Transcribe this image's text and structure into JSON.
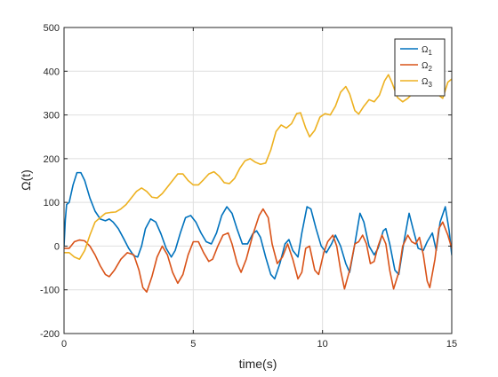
{
  "chart_data": {
    "type": "line",
    "title": "",
    "xlabel": "time(s)",
    "ylabel": "Ω(t)",
    "xlim": [
      0,
      15
    ],
    "ylim": [
      -200,
      500
    ],
    "xticks": [
      0,
      5,
      10,
      15
    ],
    "yticks": [
      -200,
      -100,
      0,
      100,
      200,
      300,
      400,
      500
    ],
    "grid": true,
    "legend_position": "top-right",
    "series": [
      {
        "name": "Ω1",
        "legend_base": "Ω",
        "legend_sub": "1",
        "color": "#0072BD",
        "points": [
          [
            0,
            0
          ],
          [
            0.05,
            60
          ],
          [
            0.1,
            95
          ],
          [
            0.2,
            100
          ],
          [
            0.35,
            140
          ],
          [
            0.5,
            168
          ],
          [
            0.65,
            168
          ],
          [
            0.8,
            150
          ],
          [
            1.0,
            110
          ],
          [
            1.2,
            80
          ],
          [
            1.4,
            62
          ],
          [
            1.6,
            58
          ],
          [
            1.75,
            62
          ],
          [
            1.9,
            55
          ],
          [
            2.1,
            40
          ],
          [
            2.3,
            18
          ],
          [
            2.5,
            -5
          ],
          [
            2.7,
            -22
          ],
          [
            2.85,
            -25
          ],
          [
            3.0,
            0
          ],
          [
            3.15,
            40
          ],
          [
            3.35,
            62
          ],
          [
            3.55,
            55
          ],
          [
            3.75,
            28
          ],
          [
            3.95,
            -5
          ],
          [
            4.15,
            -25
          ],
          [
            4.3,
            -10
          ],
          [
            4.5,
            30
          ],
          [
            4.7,
            65
          ],
          [
            4.9,
            70
          ],
          [
            5.1,
            55
          ],
          [
            5.3,
            30
          ],
          [
            5.5,
            10
          ],
          [
            5.7,
            5
          ],
          [
            5.9,
            30
          ],
          [
            6.1,
            70
          ],
          [
            6.3,
            90
          ],
          [
            6.5,
            75
          ],
          [
            6.7,
            38
          ],
          [
            6.9,
            5
          ],
          [
            7.1,
            5
          ],
          [
            7.3,
            28
          ],
          [
            7.45,
            35
          ],
          [
            7.6,
            20
          ],
          [
            7.8,
            -25
          ],
          [
            8.0,
            -65
          ],
          [
            8.15,
            -75
          ],
          [
            8.35,
            -40
          ],
          [
            8.55,
            5
          ],
          [
            8.7,
            15
          ],
          [
            8.85,
            -10
          ],
          [
            9.05,
            -25
          ],
          [
            9.2,
            30
          ],
          [
            9.4,
            90
          ],
          [
            9.55,
            85
          ],
          [
            9.75,
            40
          ],
          [
            9.95,
            0
          ],
          [
            10.15,
            -15
          ],
          [
            10.35,
            5
          ],
          [
            10.5,
            25
          ],
          [
            10.7,
            0
          ],
          [
            10.9,
            -40
          ],
          [
            11.05,
            -60
          ],
          [
            11.25,
            5
          ],
          [
            11.45,
            75
          ],
          [
            11.6,
            55
          ],
          [
            11.8,
            0
          ],
          [
            12.0,
            -20
          ],
          [
            12.15,
            -5
          ],
          [
            12.35,
            35
          ],
          [
            12.45,
            40
          ],
          [
            12.6,
            5
          ],
          [
            12.8,
            -55
          ],
          [
            12.95,
            -65
          ],
          [
            13.15,
            10
          ],
          [
            13.35,
            75
          ],
          [
            13.5,
            40
          ],
          [
            13.7,
            -5
          ],
          [
            13.9,
            -10
          ],
          [
            14.05,
            10
          ],
          [
            14.25,
            30
          ],
          [
            14.4,
            -10
          ],
          [
            14.55,
            55
          ],
          [
            14.75,
            90
          ],
          [
            14.9,
            35
          ],
          [
            15.0,
            -20
          ]
        ]
      },
      {
        "name": "Ω2",
        "legend_base": "Ω",
        "legend_sub": "2",
        "color": "#D95319",
        "points": [
          [
            0,
            -5
          ],
          [
            0.2,
            -5
          ],
          [
            0.4,
            10
          ],
          [
            0.6,
            14
          ],
          [
            0.8,
            12
          ],
          [
            1.0,
            0
          ],
          [
            1.2,
            -20
          ],
          [
            1.4,
            -45
          ],
          [
            1.6,
            -65
          ],
          [
            1.75,
            -70
          ],
          [
            1.95,
            -55
          ],
          [
            2.2,
            -30
          ],
          [
            2.45,
            -15
          ],
          [
            2.7,
            -20
          ],
          [
            2.9,
            -55
          ],
          [
            3.05,
            -95
          ],
          [
            3.2,
            -105
          ],
          [
            3.4,
            -70
          ],
          [
            3.6,
            -25
          ],
          [
            3.8,
            0
          ],
          [
            4.0,
            -20
          ],
          [
            4.2,
            -60
          ],
          [
            4.4,
            -85
          ],
          [
            4.6,
            -65
          ],
          [
            4.8,
            -20
          ],
          [
            5.0,
            10
          ],
          [
            5.2,
            10
          ],
          [
            5.4,
            -15
          ],
          [
            5.6,
            -35
          ],
          [
            5.75,
            -30
          ],
          [
            5.95,
            0
          ],
          [
            6.15,
            25
          ],
          [
            6.35,
            30
          ],
          [
            6.5,
            5
          ],
          [
            6.7,
            -40
          ],
          [
            6.85,
            -60
          ],
          [
            7.05,
            -30
          ],
          [
            7.3,
            25
          ],
          [
            7.55,
            70
          ],
          [
            7.7,
            85
          ],
          [
            7.9,
            65
          ],
          [
            8.05,
            5
          ],
          [
            8.25,
            -40
          ],
          [
            8.45,
            -25
          ],
          [
            8.65,
            5
          ],
          [
            8.85,
            -30
          ],
          [
            9.05,
            -75
          ],
          [
            9.2,
            -60
          ],
          [
            9.35,
            -5
          ],
          [
            9.5,
            0
          ],
          [
            9.7,
            -55
          ],
          [
            9.85,
            -65
          ],
          [
            10.05,
            -15
          ],
          [
            10.2,
            10
          ],
          [
            10.4,
            25
          ],
          [
            10.55,
            0
          ],
          [
            10.7,
            -55
          ],
          [
            10.85,
            -98
          ],
          [
            11.05,
            -55
          ],
          [
            11.25,
            5
          ],
          [
            11.4,
            10
          ],
          [
            11.55,
            25
          ],
          [
            11.7,
            5
          ],
          [
            11.85,
            -40
          ],
          [
            12.0,
            -35
          ],
          [
            12.15,
            0
          ],
          [
            12.3,
            25
          ],
          [
            12.45,
            5
          ],
          [
            12.6,
            -55
          ],
          [
            12.75,
            -98
          ],
          [
            12.95,
            -60
          ],
          [
            13.1,
            0
          ],
          [
            13.3,
            25
          ],
          [
            13.45,
            10
          ],
          [
            13.6,
            5
          ],
          [
            13.75,
            20
          ],
          [
            13.9,
            -20
          ],
          [
            14.05,
            -80
          ],
          [
            14.15,
            -95
          ],
          [
            14.35,
            -30
          ],
          [
            14.5,
            40
          ],
          [
            14.65,
            55
          ],
          [
            14.85,
            25
          ],
          [
            15.0,
            -5
          ]
        ]
      },
      {
        "name": "Ω3",
        "legend_base": "Ω",
        "legend_sub": "3",
        "color": "#EDB120",
        "points": [
          [
            0,
            -15
          ],
          [
            0.2,
            -15
          ],
          [
            0.4,
            -25
          ],
          [
            0.6,
            -30
          ],
          [
            0.8,
            -10
          ],
          [
            1.0,
            25
          ],
          [
            1.2,
            55
          ],
          [
            1.4,
            65
          ],
          [
            1.6,
            75
          ],
          [
            1.8,
            77
          ],
          [
            2.0,
            78
          ],
          [
            2.2,
            85
          ],
          [
            2.4,
            95
          ],
          [
            2.6,
            110
          ],
          [
            2.8,
            125
          ],
          [
            3.0,
            133
          ],
          [
            3.2,
            125
          ],
          [
            3.4,
            112
          ],
          [
            3.6,
            110
          ],
          [
            3.8,
            120
          ],
          [
            4.0,
            135
          ],
          [
            4.2,
            150
          ],
          [
            4.4,
            165
          ],
          [
            4.6,
            165
          ],
          [
            4.8,
            150
          ],
          [
            5.0,
            140
          ],
          [
            5.2,
            140
          ],
          [
            5.4,
            152
          ],
          [
            5.6,
            165
          ],
          [
            5.8,
            170
          ],
          [
            6.0,
            160
          ],
          [
            6.2,
            145
          ],
          [
            6.4,
            143
          ],
          [
            6.6,
            155
          ],
          [
            6.8,
            178
          ],
          [
            7.0,
            195
          ],
          [
            7.2,
            200
          ],
          [
            7.4,
            192
          ],
          [
            7.6,
            187
          ],
          [
            7.8,
            190
          ],
          [
            8.0,
            220
          ],
          [
            8.2,
            262
          ],
          [
            8.4,
            277
          ],
          [
            8.6,
            270
          ],
          [
            8.8,
            280
          ],
          [
            9.0,
            303
          ],
          [
            9.15,
            305
          ],
          [
            9.35,
            270
          ],
          [
            9.5,
            250
          ],
          [
            9.7,
            265
          ],
          [
            9.9,
            295
          ],
          [
            10.1,
            303
          ],
          [
            10.3,
            300
          ],
          [
            10.5,
            320
          ],
          [
            10.7,
            352
          ],
          [
            10.9,
            365
          ],
          [
            11.05,
            348
          ],
          [
            11.25,
            310
          ],
          [
            11.4,
            302
          ],
          [
            11.6,
            320
          ],
          [
            11.8,
            335
          ],
          [
            12.0,
            330
          ],
          [
            12.2,
            345
          ],
          [
            12.4,
            378
          ],
          [
            12.55,
            392
          ],
          [
            12.7,
            372
          ],
          [
            12.9,
            340
          ],
          [
            13.1,
            330
          ],
          [
            13.3,
            338
          ],
          [
            13.5,
            350
          ],
          [
            13.65,
            355
          ],
          [
            13.8,
            375
          ],
          [
            14.0,
            405
          ],
          [
            14.15,
            415
          ],
          [
            14.35,
            375
          ],
          [
            14.5,
            345
          ],
          [
            14.65,
            338
          ],
          [
            14.85,
            375
          ],
          [
            15.0,
            382
          ]
        ]
      }
    ]
  }
}
